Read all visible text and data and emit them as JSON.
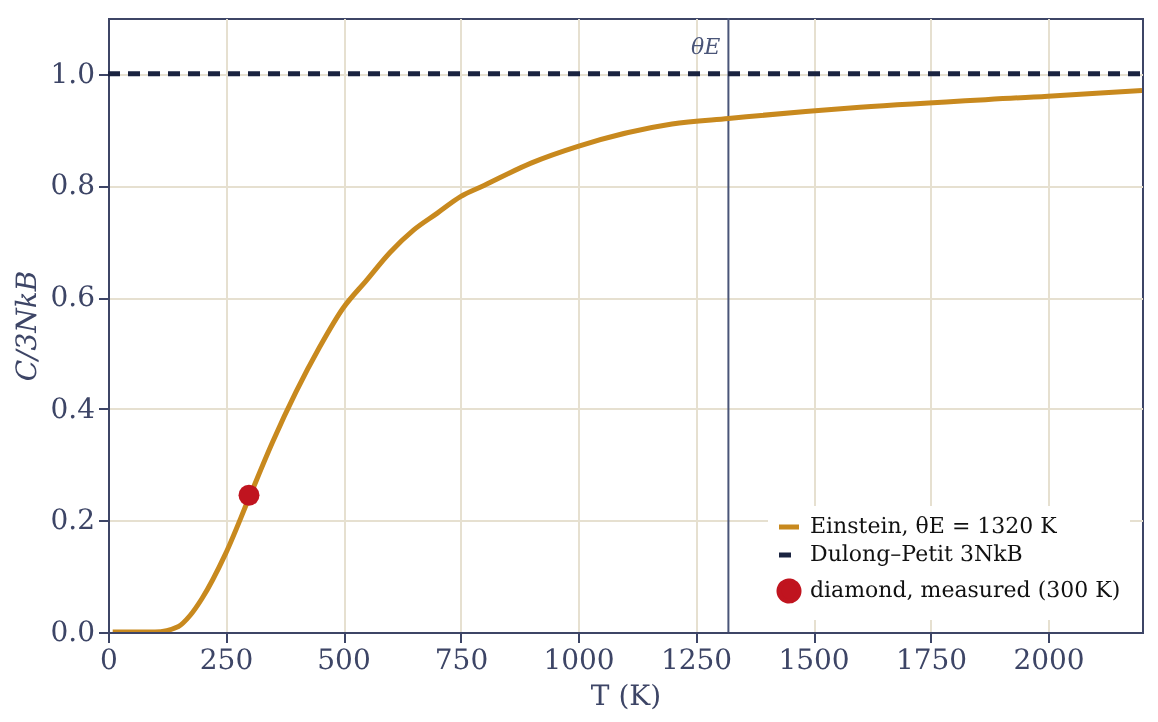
{
  "chart_data": {
    "type": "line",
    "xlabel": "T (K)",
    "ylabel": "C/3NkB",
    "xlim": [
      0,
      2200
    ],
    "ylim": [
      0,
      1.1
    ],
    "xticks": [
      0,
      250,
      500,
      750,
      1000,
      1250,
      1500,
      1750,
      2000
    ],
    "yticks": [
      {
        "value": 0,
        "label": "0.0"
      },
      0.2,
      0.4,
      0.6,
      0.8,
      {
        "value": 1,
        "label": "1.0"
      }
    ],
    "grid": true,
    "legend": "bottom right",
    "series": [
      {
        "name": "Einstein, θE = 1320 K",
        "color": "#c8891e",
        "line_style": "solid",
        "x": [
          10,
          100,
          150,
          175,
          200,
          250,
          300,
          350,
          400,
          450,
          500,
          550,
          600,
          650,
          700,
          750,
          800,
          900,
          1000,
          1200,
          1320,
          1600,
          2000,
          2200
        ],
        "values": [
          0.0,
          0.0,
          0.01,
          0.03,
          0.06,
          0.14,
          0.24,
          0.34,
          0.43,
          0.51,
          0.58,
          0.63,
          0.68,
          0.72,
          0.75,
          0.78,
          0.8,
          0.84,
          0.87,
          0.91,
          0.92,
          0.94,
          0.96,
          0.97
        ]
      },
      {
        "name": "Dulong–Petit 3NkB",
        "color": "#1a2340",
        "line_style": "dashed",
        "x": [
          0,
          2200
        ],
        "values": [
          1.0,
          1.0
        ]
      },
      {
        "name": "diamond, measured (300 K)",
        "type": "scatter",
        "color": "#c0141f",
        "marker": "circle",
        "x": [
          300
        ],
        "values": [
          0.245
        ]
      }
    ],
    "ref_lines": [
      {
        "axis": "x",
        "value": 1320,
        "label": "θE",
        "color": "#4a5578"
      }
    ]
  }
}
